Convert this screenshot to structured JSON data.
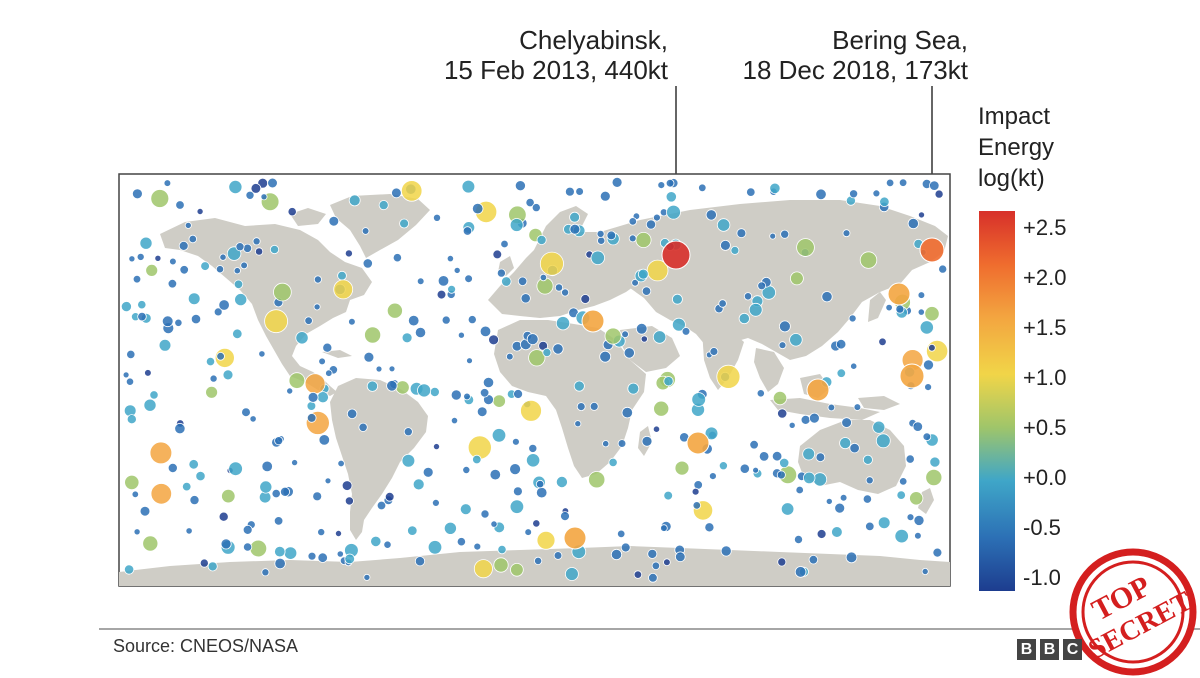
{
  "callouts": [
    {
      "place": "Chelyabinsk,",
      "detail": "15 Feb 2013, 440kt"
    },
    {
      "place": "Bering Sea,",
      "detail": "18 Dec 2018, 173kt"
    }
  ],
  "legend": {
    "title_lines": [
      "Impact",
      "Energy",
      "log(kt)"
    ],
    "ticks": [
      "+2.5",
      "+2.0",
      "+1.5",
      "+1.0",
      "+0.5",
      "+0.0",
      "-0.5",
      "-1.0"
    ],
    "colors": [
      "#d7302a",
      "#ef6c2e",
      "#f3a540",
      "#f1d548",
      "#9fc56a",
      "#3fa6c8",
      "#2c70b5",
      "#1d3d8f"
    ]
  },
  "source": "Source: CNEOS/NASA",
  "brand_letters": [
    "B",
    "B",
    "C"
  ],
  "stamp": {
    "line1": "TOP",
    "line2": "SECRET"
  },
  "colors": {
    "land": "#cfcdc6",
    "frame": "#444444"
  }
}
